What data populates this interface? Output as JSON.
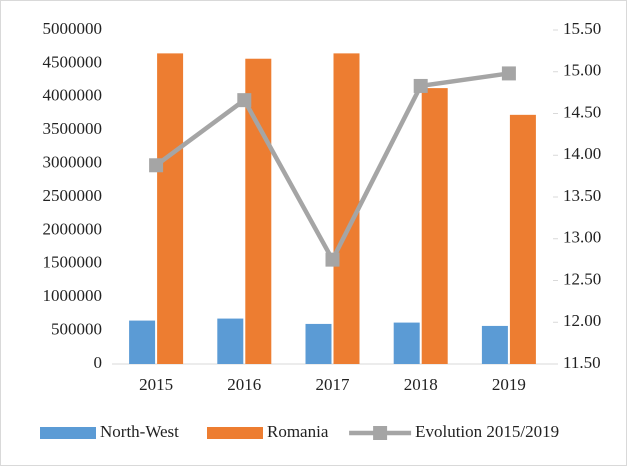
{
  "chart_data": {
    "type": "bar_line",
    "categories": [
      "2015",
      "2016",
      "2017",
      "2018",
      "2019"
    ],
    "series": [
      {
        "name": "North-West",
        "color": "#5b9bd5",
        "type": "bar",
        "values": [
          650000,
          680000,
          600000,
          620000,
          570000
        ]
      },
      {
        "name": "Romania",
        "color": "#ed7d31",
        "type": "bar",
        "values": [
          4650000,
          4570000,
          4650000,
          4130000,
          3730000
        ]
      },
      {
        "name": "Evolution 2015/2019",
        "color": "#a5a5a5",
        "type": "line",
        "axis": "y2",
        "values": [
          13.88,
          14.66,
          12.75,
          14.83,
          14.98
        ]
      }
    ],
    "ylim": [
      0,
      5000000
    ],
    "yticks": [
      0,
      500000,
      1000000,
      1500000,
      2000000,
      2500000,
      3000000,
      3500000,
      4000000,
      4500000,
      5000000
    ],
    "y2lim": [
      11.5,
      15.5
    ],
    "y2ticks": [
      {
        "value": 11.5,
        "label": "11.50"
      },
      {
        "value": 12,
        "label": "12.00"
      },
      {
        "value": 12.5,
        "label": "12.50"
      },
      {
        "value": 13,
        "label": "13.00"
      },
      {
        "value": 13.5,
        "label": "13.50"
      },
      {
        "value": 14,
        "label": "14.00"
      },
      {
        "value": 14.5,
        "label": "14.50"
      },
      {
        "value": 15,
        "label": "15.00"
      },
      {
        "value": 15.5,
        "label": "15.50"
      }
    ],
    "legend": "bottom"
  }
}
